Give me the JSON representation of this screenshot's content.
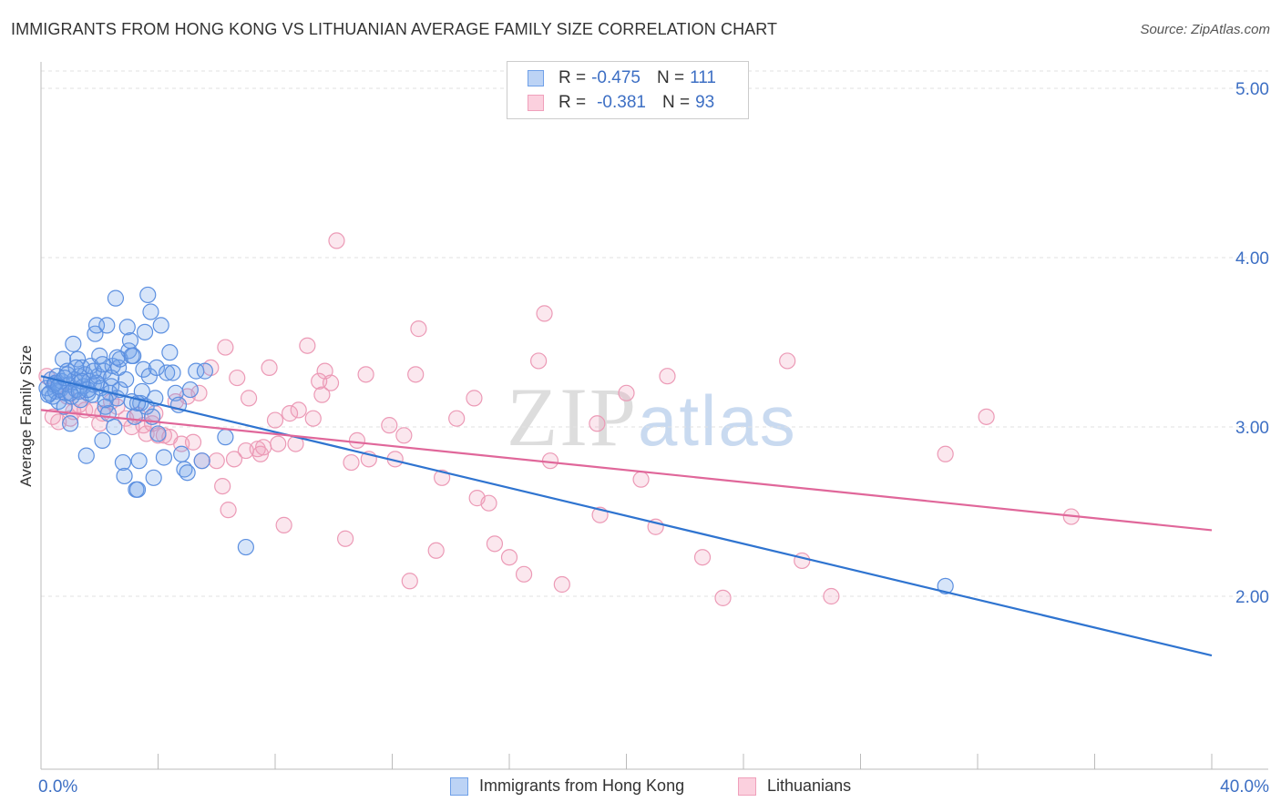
{
  "title": "IMMIGRANTS FROM HONG KONG VS LITHUANIAN AVERAGE FAMILY SIZE CORRELATION CHART",
  "source": "Source: ZipAtlas.com",
  "watermark": {
    "zip": "ZIP",
    "atlas": "atlas"
  },
  "legend": {
    "rows": [
      {
        "r_label": "R =",
        "r_value": "-0.475",
        "n_label": "N =",
        "n_value": "111"
      },
      {
        "r_label": "R =",
        "r_value": "-0.381",
        "n_label": "N =",
        "n_value": "93"
      }
    ]
  },
  "bottom_legend": [
    "Immigrants from Hong Kong",
    "Lithuanians"
  ],
  "colors": {
    "blue": "#6fa0e8",
    "blue_line": "#2f74d0",
    "pink": "#f0a0bb",
    "pink_line": "#e0679a",
    "tick_text": "#3d6fc4",
    "grid": "#dddddd"
  },
  "chart_data": {
    "type": "scatter",
    "title": "IMMIGRANTS FROM HONG KONG VS LITHUANIAN AVERAGE FAMILY SIZE CORRELATION CHART",
    "xlabel": "",
    "ylabel": "Average Family Size",
    "xlim": [
      0,
      40
    ],
    "ylim": [
      1.0,
      5.15
    ],
    "x_tick_labels": [
      "0.0%",
      "40.0%"
    ],
    "y_ticks": [
      2.0,
      3.0,
      4.0,
      5.0
    ],
    "y_tick_labels": [
      "2.00",
      "3.00",
      "4.00",
      "5.00"
    ],
    "grid": true,
    "legend_position": "top-center",
    "series": [
      {
        "name": "Immigrants from Hong Kong",
        "color": "#6fa0e8",
        "trend": {
          "x": [
            0,
            40
          ],
          "y": [
            3.3,
            1.65
          ]
        },
        "points": [
          [
            0.2,
            3.23
          ],
          [
            0.3,
            3.2
          ],
          [
            0.35,
            3.28
          ],
          [
            0.4,
            3.18
          ],
          [
            0.45,
            3.25
          ],
          [
            0.5,
            3.21
          ],
          [
            0.55,
            3.3
          ],
          [
            0.6,
            3.15
          ],
          [
            0.65,
            3.22
          ],
          [
            0.7,
            3.27
          ],
          [
            0.75,
            3.4
          ],
          [
            0.8,
            3.12
          ],
          [
            0.85,
            3.2
          ],
          [
            0.9,
            3.33
          ],
          [
            0.95,
            3.25
          ],
          [
            1.0,
            3.02
          ],
          [
            1.05,
            3.18
          ],
          [
            1.1,
            3.49
          ],
          [
            1.15,
            3.28
          ],
          [
            1.2,
            3.22
          ],
          [
            1.25,
            3.4
          ],
          [
            1.3,
            3.3
          ],
          [
            1.35,
            3.16
          ],
          [
            1.4,
            3.35
          ],
          [
            1.45,
            3.24
          ],
          [
            1.5,
            3.31
          ],
          [
            1.55,
            2.83
          ],
          [
            1.6,
            3.2
          ],
          [
            1.65,
            3.27
          ],
          [
            1.7,
            3.36
          ],
          [
            1.75,
            3.19
          ],
          [
            1.8,
            3.25
          ],
          [
            1.85,
            3.55
          ],
          [
            1.9,
            3.6
          ],
          [
            1.95,
            3.3
          ],
          [
            2.0,
            3.42
          ],
          [
            2.05,
            3.23
          ],
          [
            2.1,
            2.92
          ],
          [
            2.15,
            3.33
          ],
          [
            2.2,
            3.12
          ],
          [
            2.25,
            3.6
          ],
          [
            2.3,
            3.08
          ],
          [
            2.35,
            3.2
          ],
          [
            2.4,
            3.24
          ],
          [
            2.45,
            3.36
          ],
          [
            2.5,
            3.0
          ],
          [
            2.55,
            3.76
          ],
          [
            2.6,
            3.17
          ],
          [
            2.65,
            3.35
          ],
          [
            2.7,
            3.4
          ],
          [
            2.8,
            2.79
          ],
          [
            2.85,
            2.71
          ],
          [
            2.9,
            3.28
          ],
          [
            2.95,
            3.59
          ],
          [
            3.0,
            3.45
          ],
          [
            3.05,
            3.51
          ],
          [
            3.1,
            3.15
          ],
          [
            3.15,
            3.42
          ],
          [
            3.2,
            3.06
          ],
          [
            3.25,
            2.63
          ],
          [
            3.3,
            2.63
          ],
          [
            3.35,
            2.8
          ],
          [
            3.4,
            3.14
          ],
          [
            3.45,
            3.21
          ],
          [
            3.5,
            3.34
          ],
          [
            3.55,
            3.56
          ],
          [
            3.6,
            3.12
          ],
          [
            3.65,
            3.78
          ],
          [
            3.7,
            3.3
          ],
          [
            3.75,
            3.68
          ],
          [
            3.8,
            3.06
          ],
          [
            3.85,
            2.7
          ],
          [
            3.9,
            3.17
          ],
          [
            3.95,
            3.35
          ],
          [
            4.0,
            2.96
          ],
          [
            4.1,
            3.6
          ],
          [
            4.2,
            2.82
          ],
          [
            4.3,
            3.32
          ],
          [
            4.4,
            3.44
          ],
          [
            4.5,
            3.32
          ],
          [
            4.6,
            3.2
          ],
          [
            4.7,
            3.13
          ],
          [
            4.8,
            2.84
          ],
          [
            4.9,
            2.75
          ],
          [
            5.0,
            2.73
          ],
          [
            5.1,
            3.22
          ],
          [
            5.3,
            3.33
          ],
          [
            5.5,
            2.8
          ],
          [
            5.6,
            3.33
          ],
          [
            6.3,
            2.94
          ],
          [
            7.0,
            2.29
          ],
          [
            30.9,
            2.06
          ],
          [
            0.25,
            3.19
          ],
          [
            0.5,
            3.26
          ],
          [
            0.9,
            3.31
          ],
          [
            1.2,
            3.35
          ],
          [
            1.6,
            3.22
          ],
          [
            1.9,
            3.26
          ],
          [
            2.2,
            3.16
          ],
          [
            2.6,
            3.41
          ],
          [
            3.1,
            3.42
          ],
          [
            3.3,
            3.14
          ],
          [
            0.6,
            3.24
          ],
          [
            1.0,
            3.2
          ],
          [
            1.4,
            3.27
          ],
          [
            1.8,
            3.33
          ],
          [
            2.1,
            3.37
          ],
          [
            2.4,
            3.29
          ],
          [
            0.8,
            3.29
          ],
          [
            1.3,
            3.21
          ],
          [
            2.7,
            3.22
          ]
        ]
      },
      {
        "name": "Lithuanians",
        "color": "#f0a0bb",
        "trend": {
          "x": [
            0,
            40
          ],
          "y": [
            3.1,
            2.39
          ]
        },
        "points": [
          [
            0.2,
            3.3
          ],
          [
            0.4,
            3.06
          ],
          [
            0.6,
            3.03
          ],
          [
            0.9,
            3.18
          ],
          [
            1.0,
            3.05
          ],
          [
            1.3,
            3.13
          ],
          [
            1.5,
            3.1
          ],
          [
            1.8,
            3.1
          ],
          [
            2.1,
            3.08
          ],
          [
            2.4,
            3.15
          ],
          [
            2.6,
            3.12
          ],
          [
            2.9,
            3.05
          ],
          [
            3.1,
            3.0
          ],
          [
            3.3,
            3.07
          ],
          [
            3.5,
            3.01
          ],
          [
            3.6,
            2.96
          ],
          [
            3.8,
            3.02
          ],
          [
            3.9,
            3.08
          ],
          [
            4.0,
            2.95
          ],
          [
            4.2,
            2.95
          ],
          [
            4.4,
            2.94
          ],
          [
            4.6,
            3.15
          ],
          [
            4.8,
            2.9
          ],
          [
            5.0,
            3.18
          ],
          [
            5.2,
            2.91
          ],
          [
            5.4,
            3.2
          ],
          [
            5.5,
            2.8
          ],
          [
            5.8,
            3.35
          ],
          [
            6.0,
            2.8
          ],
          [
            6.2,
            2.65
          ],
          [
            6.3,
            3.47
          ],
          [
            6.4,
            2.51
          ],
          [
            6.6,
            2.81
          ],
          [
            6.7,
            3.29
          ],
          [
            7.0,
            2.86
          ],
          [
            7.1,
            3.17
          ],
          [
            7.4,
            2.87
          ],
          [
            7.5,
            2.84
          ],
          [
            7.6,
            2.88
          ],
          [
            7.8,
            3.35
          ],
          [
            8.0,
            3.04
          ],
          [
            8.1,
            2.9
          ],
          [
            8.3,
            2.42
          ],
          [
            8.5,
            3.08
          ],
          [
            8.7,
            2.9
          ],
          [
            8.8,
            3.1
          ],
          [
            9.1,
            3.48
          ],
          [
            9.3,
            3.05
          ],
          [
            9.5,
            3.27
          ],
          [
            9.6,
            3.19
          ],
          [
            9.7,
            3.33
          ],
          [
            9.9,
            3.26
          ],
          [
            10.1,
            4.1
          ],
          [
            10.4,
            2.34
          ],
          [
            10.6,
            2.79
          ],
          [
            10.8,
            2.92
          ],
          [
            11.1,
            3.31
          ],
          [
            11.2,
            2.81
          ],
          [
            11.9,
            3.01
          ],
          [
            12.1,
            2.81
          ],
          [
            12.4,
            2.95
          ],
          [
            12.6,
            2.09
          ],
          [
            12.8,
            3.31
          ],
          [
            12.9,
            3.58
          ],
          [
            13.5,
            2.27
          ],
          [
            13.7,
            2.7
          ],
          [
            14.2,
            3.05
          ],
          [
            14.8,
            3.17
          ],
          [
            14.9,
            2.58
          ],
          [
            15.3,
            2.55
          ],
          [
            15.5,
            2.31
          ],
          [
            16.0,
            2.23
          ],
          [
            16.5,
            2.13
          ],
          [
            17.0,
            3.39
          ],
          [
            17.2,
            3.67
          ],
          [
            17.4,
            2.8
          ],
          [
            17.8,
            2.07
          ],
          [
            19.0,
            3.02
          ],
          [
            19.1,
            2.48
          ],
          [
            20.0,
            3.2
          ],
          [
            20.5,
            2.69
          ],
          [
            21.0,
            2.41
          ],
          [
            21.4,
            3.3
          ],
          [
            22.6,
            2.23
          ],
          [
            23.3,
            1.99
          ],
          [
            25.5,
            3.39
          ],
          [
            26.0,
            2.21
          ],
          [
            27.0,
            2.0
          ],
          [
            30.9,
            2.84
          ],
          [
            32.3,
            3.06
          ],
          [
            35.2,
            2.47
          ],
          [
            1.1,
            3.09
          ],
          [
            2.0,
            3.02
          ]
        ]
      }
    ]
  }
}
